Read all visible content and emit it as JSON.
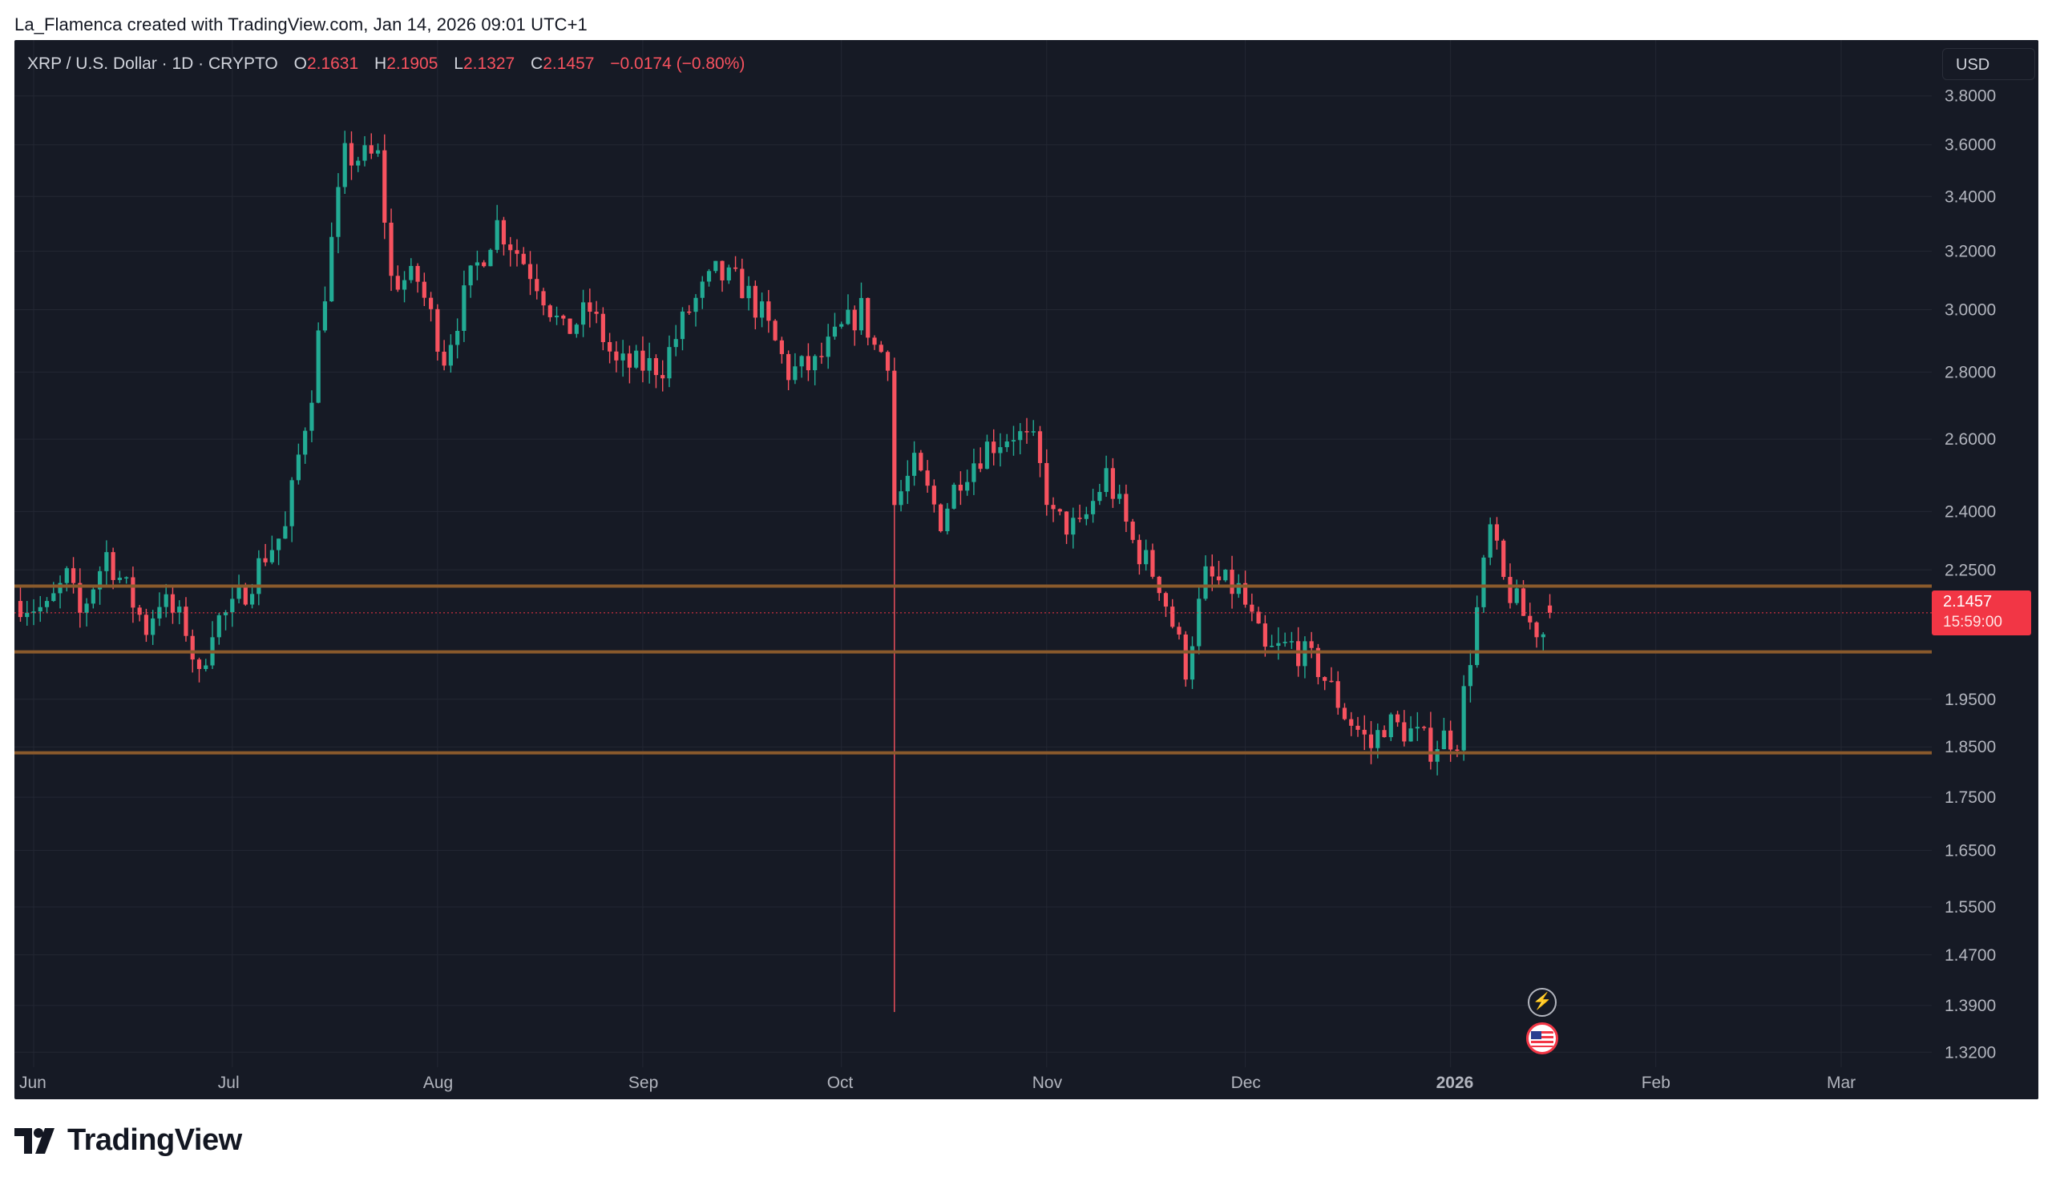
{
  "attribution": "La_Flamenca created with TradingView.com, Jan 14, 2026 09:01 UTC+1",
  "legend": {
    "symbol": "XRP / U.S. Dollar · 1D · CRYPTO",
    "open_label": "O",
    "open": "2.1631",
    "high_label": "H",
    "high": "2.1905",
    "low_label": "L",
    "low": "2.1327",
    "close_label": "C",
    "close": "2.1457",
    "change": "−0.0174 (−0.80%)"
  },
  "currency_button": "USD",
  "price_badge": {
    "price": "2.1457",
    "countdown": "15:59:00"
  },
  "brand": {
    "name": "TradingView"
  },
  "icons": {
    "event_icon": "flash-event-icon",
    "flag_icon": "us-flag-icon",
    "logo": "tradingview-logo-icon"
  },
  "colors": {
    "up": "#22ab94",
    "down": "#f7525f",
    "levels": "#8a5a2c",
    "background": "#161a25",
    "text": "#b2b5be"
  },
  "chart_data": {
    "type": "candlestick",
    "y_scale": "log",
    "ylim": [
      1.28,
      3.95
    ],
    "y_ticks": [
      "3.8000",
      "3.6000",
      "3.4000",
      "3.2000",
      "3.0000",
      "2.8000",
      "2.6000",
      "2.4000",
      "2.2500",
      "1.9500",
      "1.8500",
      "1.7500",
      "1.6500",
      "1.5500",
      "1.4700",
      "1.3900",
      "1.3200"
    ],
    "x_ticks": [
      {
        "label": "Jun",
        "day": 0
      },
      {
        "label": "Jul",
        "day": 30
      },
      {
        "label": "Aug",
        "day": 61
      },
      {
        "label": "Sep",
        "day": 92
      },
      {
        "label": "Oct",
        "day": 122
      },
      {
        "label": "Nov",
        "day": 153
      },
      {
        "label": "Dec",
        "day": 183
      },
      {
        "label": "2026",
        "day": 214,
        "bold": true
      },
      {
        "label": "Feb",
        "day": 245
      },
      {
        "label": "Mar",
        "day": 273
      }
    ],
    "horizontal_levels": [
      2.21,
      2.055,
      1.838
    ],
    "last_price": 2.1457,
    "anchors": [
      [
        -3,
        2.18
      ],
      [
        2,
        2.15
      ],
      [
        5,
        2.23
      ],
      [
        7,
        2.14
      ],
      [
        11,
        2.29
      ],
      [
        14,
        2.2
      ],
      [
        17,
        2.11
      ],
      [
        19,
        2.18
      ],
      [
        23,
        2.11
      ],
      [
        25,
        1.99
      ],
      [
        27,
        2.12
      ],
      [
        30,
        2.15
      ],
      [
        33,
        2.23
      ],
      [
        35,
        2.29
      ],
      [
        38,
        2.35
      ],
      [
        42,
        2.75
      ],
      [
        47,
        3.55
      ],
      [
        52,
        3.55
      ],
      [
        54,
        3.1
      ],
      [
        58,
        3.1
      ],
      [
        62,
        2.85
      ],
      [
        66,
        3.1
      ],
      [
        70,
        3.3
      ],
      [
        76,
        3.1
      ],
      [
        80,
        2.92
      ],
      [
        84,
        3.0
      ],
      [
        88,
        2.82
      ],
      [
        92,
        2.82
      ],
      [
        95,
        2.82
      ],
      [
        99,
        3.0
      ],
      [
        103,
        3.12
      ],
      [
        107,
        3.08
      ],
      [
        110,
        2.98
      ],
      [
        114,
        2.8
      ],
      [
        118,
        2.82
      ],
      [
        122,
        2.93
      ],
      [
        125,
        3.0
      ],
      [
        127,
        2.88
      ],
      [
        129,
        2.85
      ],
      [
        130,
        2.42
      ],
      [
        133,
        2.52
      ],
      [
        137,
        2.38
      ],
      [
        140,
        2.5
      ],
      [
        144,
        2.58
      ],
      [
        148,
        2.62
      ],
      [
        151,
        2.58
      ],
      [
        154,
        2.38
      ],
      [
        158,
        2.35
      ],
      [
        162,
        2.5
      ],
      [
        166,
        2.32
      ],
      [
        170,
        2.22
      ],
      [
        174,
        2.02
      ],
      [
        177,
        2.23
      ],
      [
        182,
        2.2
      ],
      [
        186,
        2.05
      ],
      [
        190,
        2.07
      ],
      [
        194,
        2.02
      ],
      [
        198,
        1.92
      ],
      [
        202,
        1.85
      ],
      [
        204,
        1.9
      ],
      [
        208,
        1.88
      ],
      [
        211,
        1.85
      ],
      [
        213,
        1.87
      ],
      [
        215,
        1.87
      ],
      [
        217,
        2.05
      ],
      [
        220,
        2.35
      ],
      [
        222,
        2.22
      ],
      [
        225,
        2.14
      ],
      [
        226,
        2.12
      ],
      [
        228,
        2.1
      ],
      [
        229,
        2.1457
      ]
    ],
    "special_wicks": [
      {
        "day": 130,
        "low": 1.38
      }
    ]
  }
}
